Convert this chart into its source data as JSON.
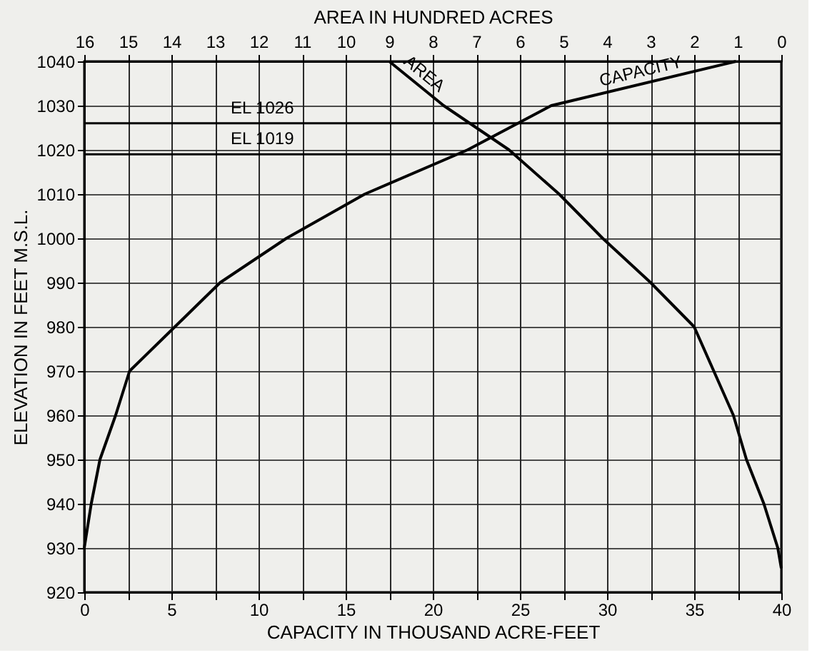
{
  "chart_data": {
    "type": "line",
    "xlabel": "CAPACITY IN THOUSAND ACRE-FEET",
    "x2label": "AREA IN HUNDRED ACRES",
    "ylabel": "ELEVATION IN FEET M.S.L.",
    "series": [
      {
        "name": "CAPACITY",
        "color": "#000000",
        "x": [
          0,
          0.4,
          0.9,
          1.8,
          2.6,
          5.2,
          7.8,
          11.6,
          16.1,
          22.0,
          26.8,
          37.4
        ],
        "values": [
          930,
          940,
          950,
          960,
          970,
          980,
          990,
          1000,
          1010,
          1020,
          1030,
          1040
        ]
      },
      {
        "name": "AREA",
        "color": "#000000",
        "axis": "x2",
        "x": [
          9.0,
          7.75,
          6.25,
          5.1,
          4.1,
          3.0,
          2.0,
          1.55,
          1.1,
          0.8,
          0.4,
          0.08,
          0
        ],
        "values": [
          1040,
          1030,
          1020,
          1010,
          1000,
          990,
          980,
          970,
          960,
          950,
          940,
          930,
          925.4
        ]
      }
    ],
    "xlim": [
      0,
      40
    ],
    "xticks": [
      0,
      {
        "value": 2.5,
        "label": null
      },
      5,
      {
        "value": 7.5,
        "label": null
      },
      10,
      {
        "value": 12.5,
        "label": null
      },
      15,
      {
        "value": 17.5,
        "label": null
      },
      20,
      {
        "value": 22.5,
        "label": null
      },
      25,
      {
        "value": 27.5,
        "label": null
      },
      30,
      {
        "value": 32.5,
        "label": null
      },
      35,
      {
        "value": 37.5,
        "label": null
      },
      40
    ],
    "x2lim": [
      16,
      0
    ],
    "x2ticks": [
      16,
      15,
      14,
      13,
      12,
      11,
      10,
      9,
      8,
      7,
      6,
      5,
      4,
      3,
      2,
      1,
      0
    ],
    "ylim": [
      920,
      1040
    ],
    "yticks": [
      920,
      930,
      940,
      950,
      960,
      970,
      980,
      990,
      1000,
      1010,
      1020,
      1030,
      1040
    ],
    "ref_lines": [
      {
        "axis": "y",
        "value": 1026,
        "label": "EL 1026",
        "color": "#000000"
      },
      {
        "axis": "y",
        "value": 1019,
        "label": "EL 1019",
        "color": "#000000"
      }
    ],
    "grid": true,
    "marker": "none",
    "line_style": "solid"
  }
}
